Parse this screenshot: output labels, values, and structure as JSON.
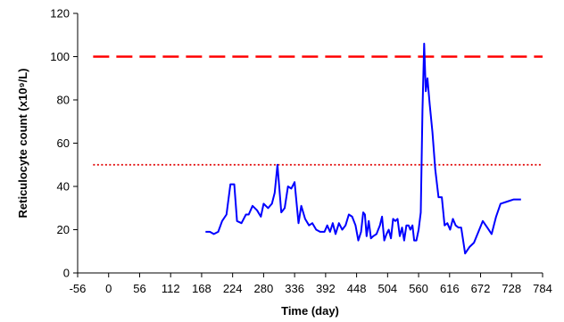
{
  "chart_data": {
    "type": "line",
    "xlabel": "Time (day)",
    "ylabel": "Reticulocyte count (x10⁹/L)",
    "xlim": [
      -56,
      784
    ],
    "ylim": [
      0,
      120
    ],
    "xticks": [
      -56,
      0,
      56,
      112,
      168,
      224,
      280,
      336,
      392,
      448,
      504,
      560,
      616,
      672,
      728,
      784
    ],
    "yticks": [
      0,
      20,
      40,
      60,
      80,
      100,
      120
    ],
    "grid": false,
    "legend": "none",
    "reference_lines": [
      {
        "y": 100,
        "style": "dashed",
        "color": "#ff0000"
      },
      {
        "y": 50,
        "style": "dotted",
        "color": "#e00000"
      }
    ],
    "reference_line_x_range": [
      -28,
      784
    ],
    "series": [
      {
        "color": "#0000ff",
        "points": [
          [
            175,
            19
          ],
          [
            183,
            19
          ],
          [
            190,
            18
          ],
          [
            198,
            19
          ],
          [
            205,
            24
          ],
          [
            213,
            27
          ],
          [
            220,
            41
          ],
          [
            227,
            41
          ],
          [
            232,
            24
          ],
          [
            240,
            23
          ],
          [
            248,
            27
          ],
          [
            253,
            27
          ],
          [
            260,
            31
          ],
          [
            268,
            29
          ],
          [
            275,
            26
          ],
          [
            280,
            32
          ],
          [
            288,
            30
          ],
          [
            295,
            32
          ],
          [
            300,
            37
          ],
          [
            305,
            50
          ],
          [
            312,
            28
          ],
          [
            318,
            30
          ],
          [
            324,
            40
          ],
          [
            330,
            39
          ],
          [
            336,
            42
          ],
          [
            343,
            23
          ],
          [
            348,
            31
          ],
          [
            355,
            25
          ],
          [
            362,
            22
          ],
          [
            368,
            23
          ],
          [
            375,
            20
          ],
          [
            382,
            19
          ],
          [
            390,
            19
          ],
          [
            395,
            22
          ],
          [
            400,
            19
          ],
          [
            405,
            23
          ],
          [
            410,
            18
          ],
          [
            416,
            23
          ],
          [
            422,
            20
          ],
          [
            428,
            22
          ],
          [
            434,
            27
          ],
          [
            440,
            26
          ],
          [
            446,
            22
          ],
          [
            451,
            15
          ],
          [
            456,
            19
          ],
          [
            460,
            28
          ],
          [
            463,
            27
          ],
          [
            466,
            17
          ],
          [
            470,
            24
          ],
          [
            474,
            16
          ],
          [
            478,
            17
          ],
          [
            484,
            18
          ],
          [
            490,
            22
          ],
          [
            494,
            26
          ],
          [
            498,
            15
          ],
          [
            502,
            18
          ],
          [
            506,
            20
          ],
          [
            510,
            16
          ],
          [
            514,
            25
          ],
          [
            518,
            24
          ],
          [
            522,
            25
          ],
          [
            526,
            17
          ],
          [
            530,
            21
          ],
          [
            534,
            15
          ],
          [
            538,
            22
          ],
          [
            542,
            22
          ],
          [
            545,
            20
          ],
          [
            549,
            22
          ],
          [
            552,
            15
          ],
          [
            556,
            15
          ],
          [
            560,
            20
          ],
          [
            564,
            28
          ],
          [
            567,
            75
          ],
          [
            570,
            106
          ],
          [
            573,
            84
          ],
          [
            576,
            90
          ],
          [
            580,
            78
          ],
          [
            585,
            65
          ],
          [
            590,
            48
          ],
          [
            596,
            35
          ],
          [
            602,
            35
          ],
          [
            607,
            22
          ],
          [
            612,
            23
          ],
          [
            617,
            20
          ],
          [
            622,
            25
          ],
          [
            627,
            22
          ],
          [
            632,
            21
          ],
          [
            637,
            21
          ],
          [
            644,
            9
          ],
          [
            652,
            12
          ],
          [
            660,
            14
          ],
          [
            668,
            19
          ],
          [
            676,
            24
          ],
          [
            684,
            21
          ],
          [
            692,
            18
          ],
          [
            700,
            26
          ],
          [
            708,
            32
          ],
          [
            720,
            33
          ],
          [
            732,
            34
          ],
          [
            745,
            34
          ]
        ]
      }
    ]
  }
}
